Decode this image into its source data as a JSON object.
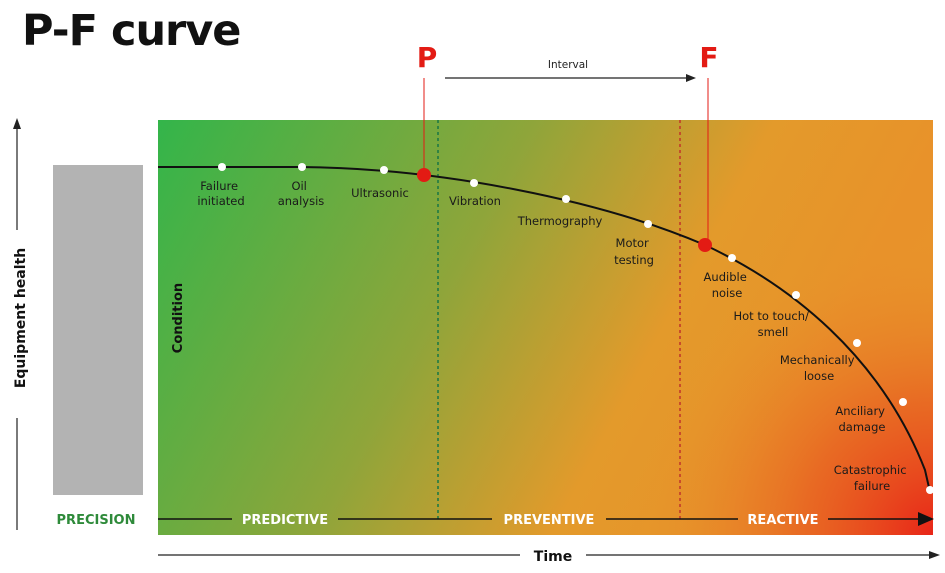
{
  "title": "P-F curve",
  "axes": {
    "y_title": "Equipment health",
    "x_title": "Time",
    "condition_label": "Condition"
  },
  "points": {
    "p_label": "P",
    "f_label": "F",
    "interval_label": "Interval"
  },
  "zones": {
    "precision": "PRECISION",
    "predictive": "PREDICTIVE",
    "preventive": "PREVENTIVE",
    "reactive": "REACTIVE"
  },
  "stages": [
    {
      "lines": [
        "Failure",
        "initiated"
      ]
    },
    {
      "lines": [
        "Oil",
        "analysis"
      ]
    },
    {
      "lines": [
        "Ultrasonic"
      ]
    },
    {
      "lines": [
        "Vibration"
      ]
    },
    {
      "lines": [
        "Thermography"
      ]
    },
    {
      "lines": [
        "Motor",
        "testing"
      ]
    },
    {
      "lines": [
        "Audible",
        "noise"
      ]
    },
    {
      "lines": [
        "Hot to touch/",
        "smell"
      ]
    },
    {
      "lines": [
        "Mechanically",
        "loose"
      ]
    },
    {
      "lines": [
        "Anciliary",
        "damage"
      ]
    },
    {
      "lines": [
        "Catastrophic",
        "failure"
      ]
    }
  ],
  "colors": {
    "gradient_green": "#33b54a",
    "gradient_orange": "#e8962a",
    "gradient_red": "#e82418",
    "pf_red": "#e31b14",
    "precision_bar": "#b3b3b3",
    "p_divider": "#1f7a45",
    "f_divider": "#c23a2a"
  }
}
